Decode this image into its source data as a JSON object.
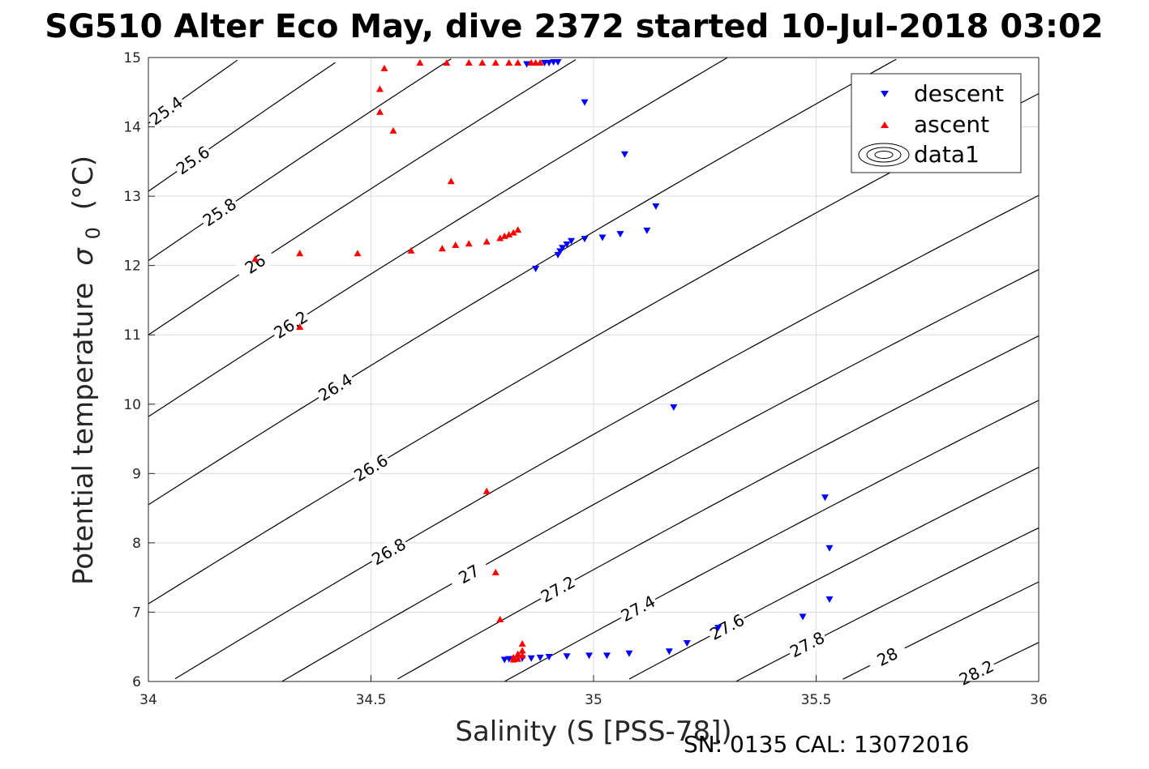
{
  "chart_data": {
    "type": "scatter",
    "title": "SG510 Alter Eco May, dive 2372 started 10-Jul-2018 03:02",
    "xlabel": "Salinity (S [PSS-78])",
    "ylabel": "Potential temperature",
    "ylabel_symbol": "σ",
    "ylabel_sub": "0",
    "ylabel_unit": "(°C)",
    "footer": "SN: 0135  CAL: 13072016",
    "xlim": [
      34,
      36
    ],
    "ylim": [
      6,
      15
    ],
    "x_ticks": [
      "34",
      "34.5",
      "35",
      "35.5",
      "36"
    ],
    "y_ticks": [
      "6",
      "7",
      "8",
      "9",
      "10",
      "11",
      "12",
      "13",
      "14",
      "15"
    ],
    "grid": true,
    "legend_position": "top-right",
    "legend": [
      "descent",
      "ascent",
      "data1"
    ],
    "series": [
      {
        "name": "descent",
        "marker": "down-triangle",
        "color": "#0000ff",
        "x": [
          34.85,
          34.89,
          34.9,
          34.91,
          34.92,
          34.98,
          35.07,
          34.87,
          34.92,
          34.925,
          34.93,
          34.94,
          34.95,
          34.98,
          35.02,
          35.06,
          35.12,
          35.14,
          35.18,
          35.52,
          35.53,
          35.53,
          35.47,
          35.28,
          35.21,
          35.17,
          35.08,
          35.03,
          34.99,
          34.94,
          34.9,
          34.88,
          34.86,
          34.84,
          34.82,
          34.81,
          34.8
        ],
        "y": [
          14.9,
          14.92,
          14.92,
          14.93,
          14.93,
          14.35,
          13.6,
          11.95,
          12.15,
          12.2,
          12.25,
          12.3,
          12.35,
          12.38,
          12.4,
          12.45,
          12.5,
          12.85,
          9.95,
          8.65,
          7.92,
          7.18,
          6.93,
          6.77,
          6.55,
          6.43,
          6.4,
          6.37,
          6.37,
          6.36,
          6.35,
          6.34,
          6.33,
          6.33,
          6.32,
          6.32,
          6.31
        ]
      },
      {
        "name": "ascent",
        "marker": "up-triangle",
        "color": "#ff0000",
        "x": [
          34.53,
          34.61,
          34.67,
          34.72,
          34.75,
          34.78,
          34.81,
          34.83,
          34.86,
          34.87,
          34.88,
          34.52,
          34.52,
          34.55,
          34.68,
          34.24,
          34.34,
          34.47,
          34.59,
          34.66,
          34.69,
          34.72,
          34.76,
          34.79,
          34.8,
          34.81,
          34.82,
          34.83,
          34.34,
          34.76,
          34.78,
          34.79,
          34.84,
          34.84,
          34.83,
          34.82,
          34.82,
          34.83,
          34.84
        ],
        "y": [
          14.85,
          14.93,
          14.93,
          14.93,
          14.93,
          14.93,
          14.93,
          14.93,
          14.93,
          14.93,
          14.93,
          14.55,
          14.22,
          13.95,
          13.22,
          12.1,
          12.18,
          12.18,
          12.22,
          12.25,
          12.3,
          12.32,
          12.35,
          12.4,
          12.43,
          12.45,
          12.48,
          12.52,
          11.12,
          8.75,
          7.58,
          6.9,
          6.55,
          6.45,
          6.4,
          6.35,
          6.32,
          6.33,
          6.38
        ]
      }
    ],
    "contour_levels": [
      "25.4",
      "25.6",
      "25.8",
      "26",
      "26.2",
      "26.4",
      "26.6",
      "26.8",
      "27",
      "27.2",
      "27.4",
      "27.6",
      "27.8",
      "28",
      "28.2"
    ],
    "contour_line_color": "#000000"
  }
}
